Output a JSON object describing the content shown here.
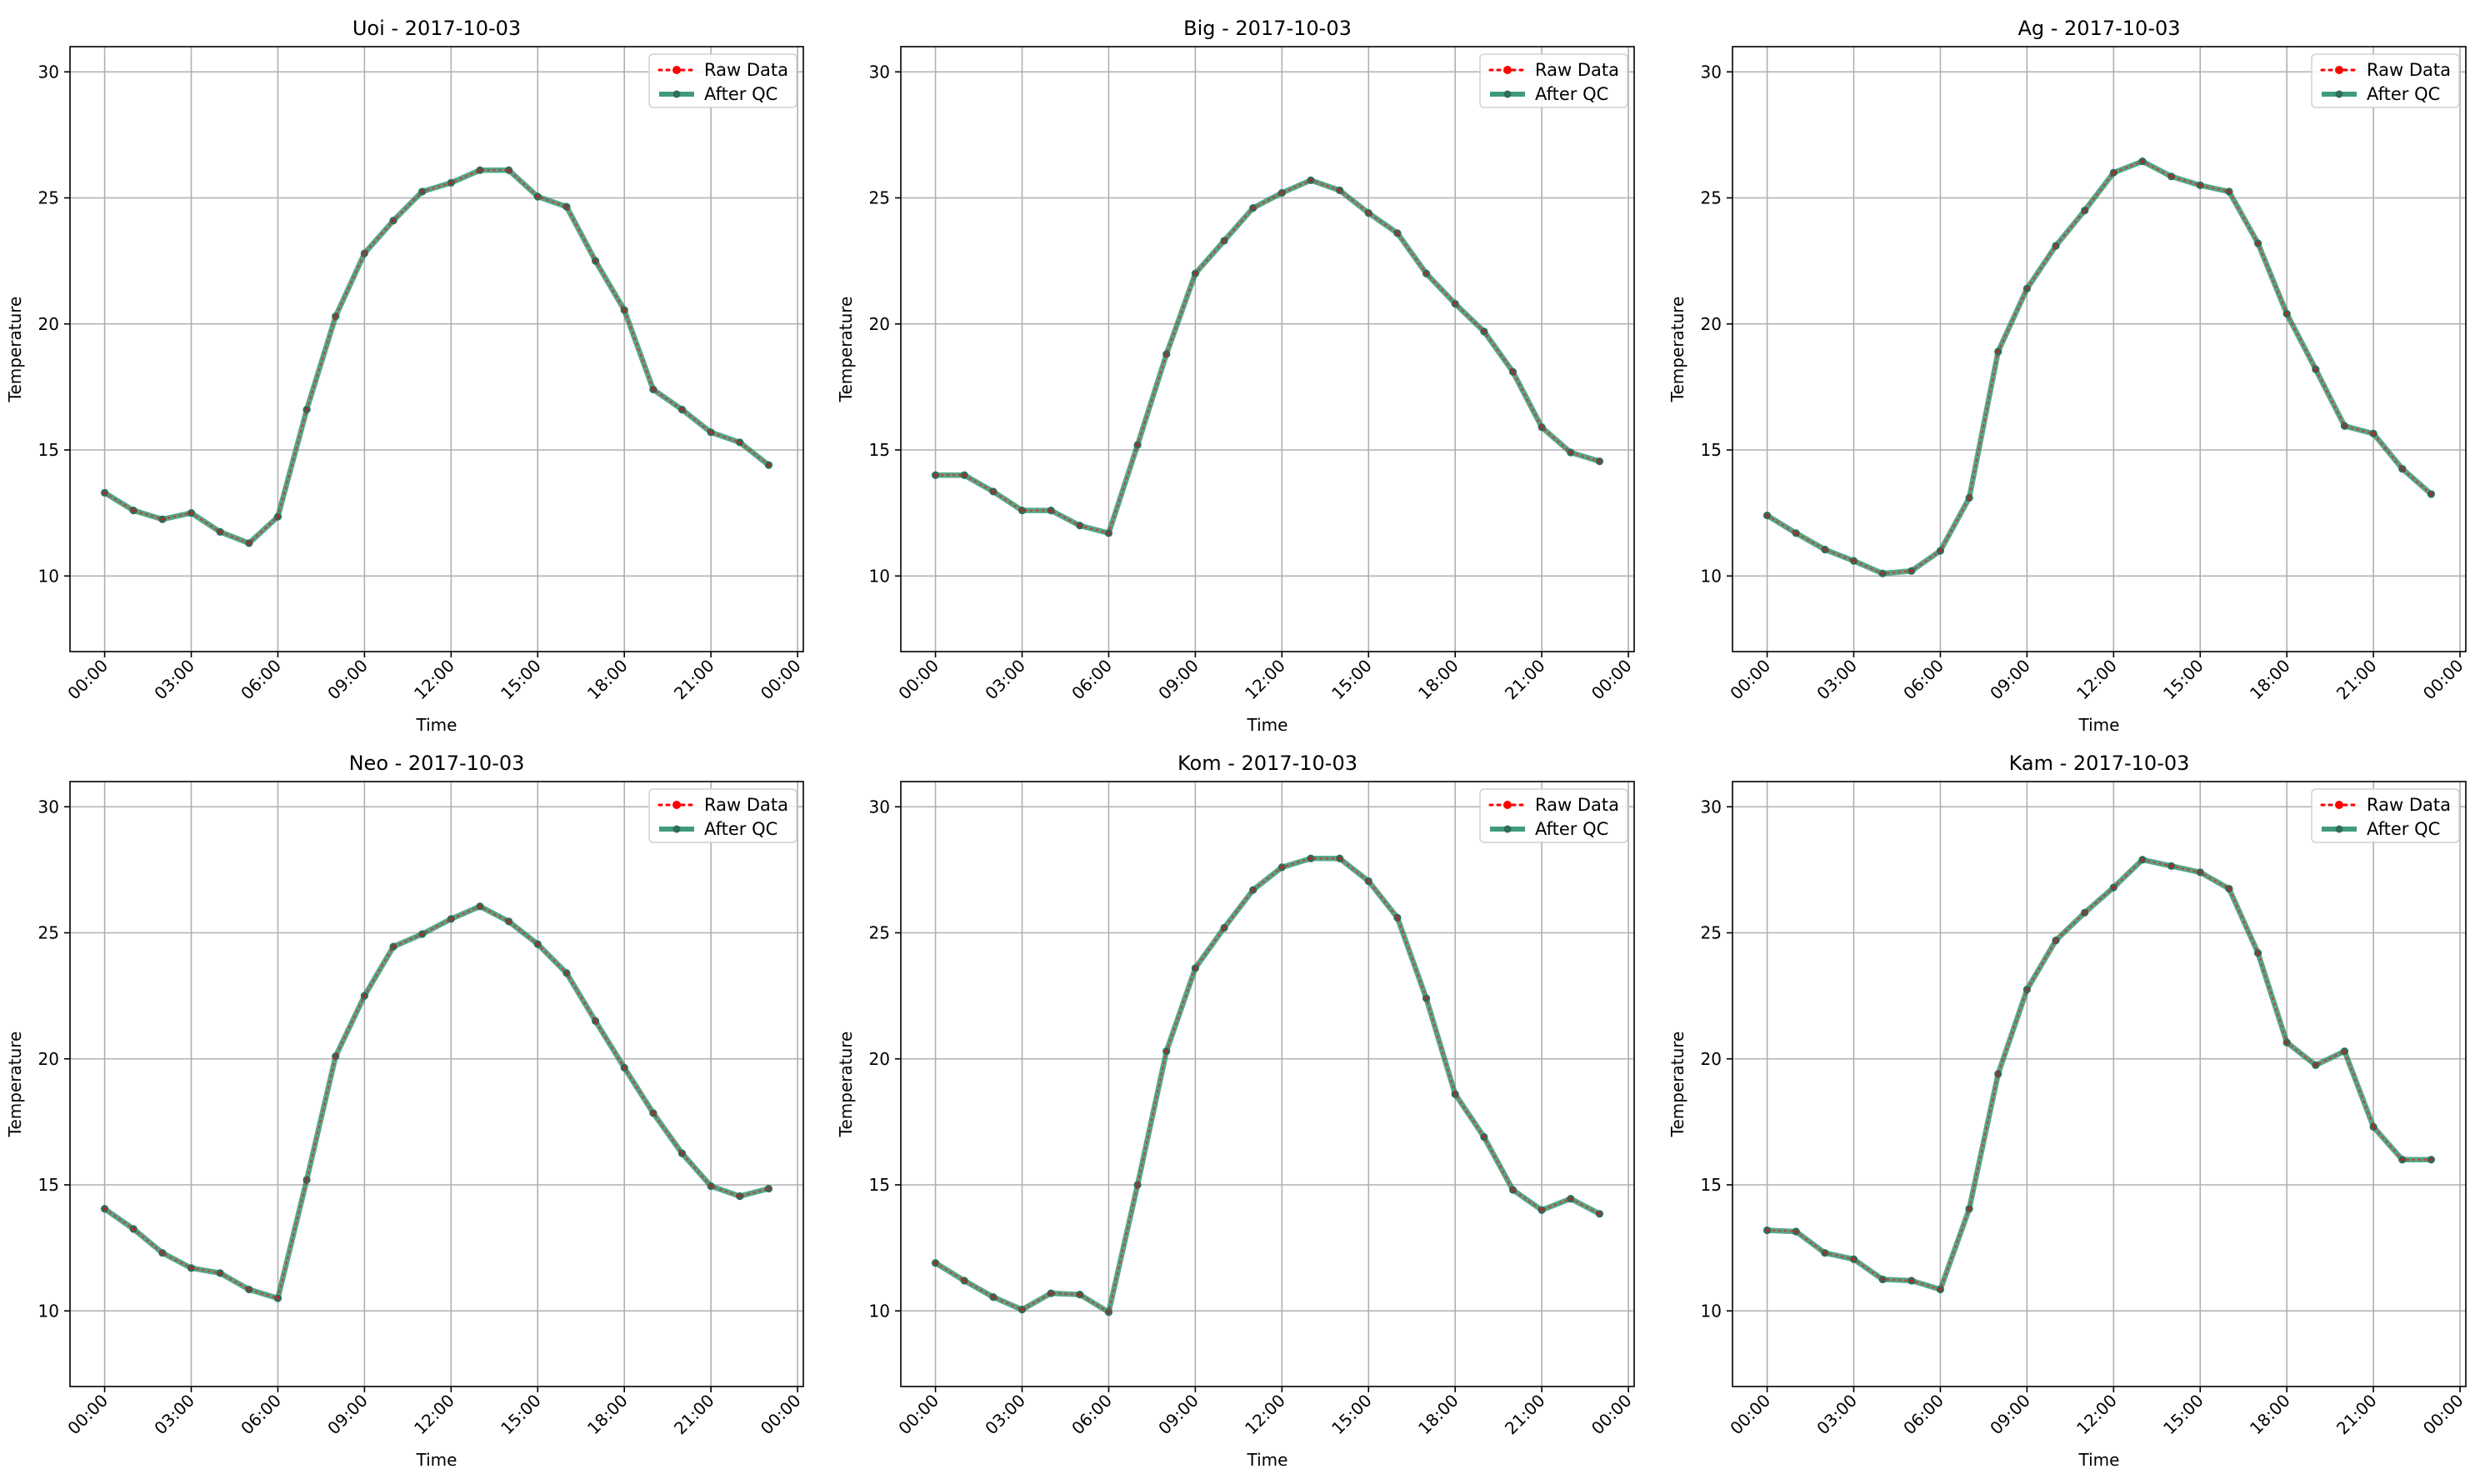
{
  "colors": {
    "raw": "#ff0000",
    "qc": "#1f8a63",
    "qc_marker": "#2e6e5b",
    "grid": "#b0b0b0",
    "axes": "#000000"
  },
  "chart_data": [
    {
      "type": "line",
      "title": "Uoi - 2017-10-03",
      "xlabel": "Time",
      "ylabel": "Temperature",
      "ylim": [
        7,
        31
      ],
      "yticks": [
        10,
        15,
        20,
        25,
        30
      ],
      "xlim_hours": [
        -1.2,
        24.2
      ],
      "xtick_labels": [
        "00:00",
        "03:00",
        "06:00",
        "09:00",
        "12:00",
        "15:00",
        "18:00",
        "21:00",
        "00:00"
      ],
      "x_hours": [
        0,
        1,
        2,
        3,
        4,
        5,
        6,
        7,
        8,
        9,
        10,
        11,
        12,
        13,
        14,
        15,
        16,
        17,
        18,
        19,
        20,
        21,
        22,
        23
      ],
      "grid": true,
      "legend_position": "top-right",
      "series": [
        {
          "name": "Raw Data",
          "values": [
            13.3,
            12.6,
            12.25,
            12.5,
            11.75,
            11.3,
            12.35,
            16.6,
            20.3,
            22.8,
            24.1,
            25.25,
            25.6,
            26.1,
            26.1,
            25.05,
            24.65,
            22.5,
            20.55,
            17.4,
            16.6,
            15.7,
            15.3,
            14.4
          ]
        },
        {
          "name": "After QC",
          "values": [
            13.3,
            12.6,
            12.25,
            12.5,
            11.75,
            11.3,
            12.35,
            16.6,
            20.3,
            22.8,
            24.1,
            25.25,
            25.6,
            26.1,
            26.1,
            25.05,
            24.65,
            22.5,
            20.55,
            17.4,
            16.6,
            15.7,
            15.3,
            14.4
          ]
        }
      ]
    },
    {
      "type": "line",
      "title": "Big - 2017-10-03",
      "xlabel": "Time",
      "ylabel": "Temperature",
      "ylim": [
        7,
        31
      ],
      "yticks": [
        10,
        15,
        20,
        25,
        30
      ],
      "xlim_hours": [
        -1.2,
        24.2
      ],
      "xtick_labels": [
        "00:00",
        "03:00",
        "06:00",
        "09:00",
        "12:00",
        "15:00",
        "18:00",
        "21:00",
        "00:00"
      ],
      "x_hours": [
        0,
        1,
        2,
        3,
        4,
        5,
        6,
        7,
        8,
        9,
        10,
        11,
        12,
        13,
        14,
        15,
        16,
        17,
        18,
        19,
        20,
        21,
        22,
        23
      ],
      "grid": true,
      "legend_position": "top-right",
      "series": [
        {
          "name": "Raw Data",
          "values": [
            14.0,
            14.0,
            13.35,
            12.6,
            12.6,
            12.0,
            11.7,
            15.2,
            18.8,
            22.0,
            23.3,
            24.6,
            25.2,
            25.7,
            25.3,
            24.4,
            23.6,
            22.0,
            20.8,
            19.7,
            18.1,
            15.9,
            14.9,
            14.55
          ]
        },
        {
          "name": "After QC",
          "values": [
            14.0,
            14.0,
            13.35,
            12.6,
            12.6,
            12.0,
            11.7,
            15.2,
            18.8,
            22.0,
            23.3,
            24.6,
            25.2,
            25.7,
            25.3,
            24.4,
            23.6,
            22.0,
            20.8,
            19.7,
            18.1,
            15.9,
            14.9,
            14.55
          ]
        }
      ]
    },
    {
      "type": "line",
      "title": "Ag - 2017-10-03",
      "xlabel": "Time",
      "ylabel": "Temperature",
      "ylim": [
        7,
        31
      ],
      "yticks": [
        10,
        15,
        20,
        25,
        30
      ],
      "xlim_hours": [
        -1.2,
        24.2
      ],
      "xtick_labels": [
        "00:00",
        "03:00",
        "06:00",
        "09:00",
        "12:00",
        "15:00",
        "18:00",
        "21:00",
        "00:00"
      ],
      "x_hours": [
        0,
        1,
        2,
        3,
        4,
        5,
        6,
        7,
        8,
        9,
        10,
        11,
        12,
        13,
        14,
        15,
        16,
        17,
        18,
        19,
        20,
        21,
        22,
        23
      ],
      "grid": true,
      "legend_position": "top-right",
      "series": [
        {
          "name": "Raw Data",
          "values": [
            12.4,
            11.7,
            11.05,
            10.6,
            10.1,
            10.2,
            11.0,
            13.1,
            18.9,
            21.4,
            23.1,
            24.5,
            26.0,
            26.45,
            25.85,
            25.5,
            25.25,
            23.2,
            20.4,
            18.2,
            15.95,
            15.65,
            14.25,
            13.25
          ]
        },
        {
          "name": "After QC",
          "values": [
            12.4,
            11.7,
            11.05,
            10.6,
            10.1,
            10.2,
            11.0,
            13.1,
            18.9,
            21.4,
            23.1,
            24.5,
            26.0,
            26.45,
            25.85,
            25.5,
            25.25,
            23.2,
            20.4,
            18.2,
            15.95,
            15.65,
            14.25,
            13.25
          ]
        }
      ]
    },
    {
      "type": "line",
      "title": "Neo - 2017-10-03",
      "xlabel": "Time",
      "ylabel": "Temperature",
      "ylim": [
        7,
        31
      ],
      "yticks": [
        10,
        15,
        20,
        25,
        30
      ],
      "xlim_hours": [
        -1.2,
        24.2
      ],
      "xtick_labels": [
        "00:00",
        "03:00",
        "06:00",
        "09:00",
        "12:00",
        "15:00",
        "18:00",
        "21:00",
        "00:00"
      ],
      "x_hours": [
        0,
        1,
        2,
        3,
        4,
        5,
        6,
        7,
        8,
        9,
        10,
        11,
        12,
        13,
        14,
        15,
        16,
        17,
        18,
        19,
        20,
        21,
        22,
        23
      ],
      "grid": true,
      "legend_position": "top-right",
      "series": [
        {
          "name": "Raw Data",
          "values": [
            14.05,
            13.25,
            12.3,
            11.7,
            11.5,
            10.85,
            10.5,
            15.2,
            20.1,
            22.5,
            24.45,
            24.95,
            25.55,
            26.05,
            25.45,
            24.55,
            23.4,
            21.5,
            19.65,
            17.85,
            16.25,
            14.95,
            14.55,
            14.85
          ]
        },
        {
          "name": "After QC",
          "values": [
            14.05,
            13.25,
            12.3,
            11.7,
            11.5,
            10.85,
            10.5,
            15.2,
            20.1,
            22.5,
            24.45,
            24.95,
            25.55,
            26.05,
            25.45,
            24.55,
            23.4,
            21.5,
            19.65,
            17.85,
            16.25,
            14.95,
            14.55,
            14.85
          ]
        }
      ]
    },
    {
      "type": "line",
      "title": "Kom - 2017-10-03",
      "xlabel": "Time",
      "ylabel": "Temperature",
      "ylim": [
        7,
        31
      ],
      "yticks": [
        10,
        15,
        20,
        25,
        30
      ],
      "xlim_hours": [
        -1.2,
        24.2
      ],
      "xtick_labels": [
        "00:00",
        "03:00",
        "06:00",
        "09:00",
        "12:00",
        "15:00",
        "18:00",
        "21:00",
        "00:00"
      ],
      "x_hours": [
        0,
        1,
        2,
        3,
        4,
        5,
        6,
        7,
        8,
        9,
        10,
        11,
        12,
        13,
        14,
        15,
        16,
        17,
        18,
        19,
        20,
        21,
        22,
        23
      ],
      "grid": true,
      "legend_position": "top-right",
      "series": [
        {
          "name": "Raw Data",
          "values": [
            11.9,
            11.2,
            10.55,
            10.05,
            10.7,
            10.65,
            9.95,
            15.0,
            20.3,
            23.6,
            25.2,
            26.7,
            27.6,
            27.95,
            27.95,
            27.05,
            25.6,
            22.4,
            18.6,
            16.9,
            14.8,
            14.0,
            14.45,
            13.85
          ]
        },
        {
          "name": "After QC",
          "values": [
            11.9,
            11.2,
            10.55,
            10.05,
            10.7,
            10.65,
            9.95,
            15.0,
            20.3,
            23.6,
            25.2,
            26.7,
            27.6,
            27.95,
            27.95,
            27.05,
            25.6,
            22.4,
            18.6,
            16.9,
            14.8,
            14.0,
            14.45,
            13.85
          ]
        }
      ]
    },
    {
      "type": "line",
      "title": "Kam - 2017-10-03",
      "xlabel": "Time",
      "ylabel": "Temperature",
      "ylim": [
        7,
        31
      ],
      "yticks": [
        10,
        15,
        20,
        25,
        30
      ],
      "xlim_hours": [
        -1.2,
        24.2
      ],
      "xtick_labels": [
        "00:00",
        "03:00",
        "06:00",
        "09:00",
        "12:00",
        "15:00",
        "18:00",
        "21:00",
        "00:00"
      ],
      "x_hours": [
        0,
        1,
        2,
        3,
        4,
        5,
        6,
        7,
        8,
        9,
        10,
        11,
        12,
        13,
        14,
        15,
        16,
        17,
        18,
        19,
        20,
        21,
        22,
        23
      ],
      "grid": true,
      "legend_position": "top-right",
      "series": [
        {
          "name": "Raw Data",
          "values": [
            13.2,
            13.15,
            12.3,
            12.05,
            11.25,
            11.2,
            10.85,
            14.05,
            19.4,
            22.75,
            24.7,
            25.8,
            26.8,
            27.9,
            27.65,
            27.4,
            26.75,
            24.2,
            20.65,
            19.75,
            20.3,
            17.3,
            16.0,
            16.0
          ]
        },
        {
          "name": "After QC",
          "values": [
            13.2,
            13.15,
            12.3,
            12.05,
            11.25,
            11.2,
            10.85,
            14.05,
            19.4,
            22.75,
            24.7,
            25.8,
            26.8,
            27.9,
            27.65,
            27.4,
            26.75,
            24.2,
            20.65,
            19.75,
            20.3,
            17.3,
            16.0,
            16.0
          ]
        }
      ]
    }
  ]
}
